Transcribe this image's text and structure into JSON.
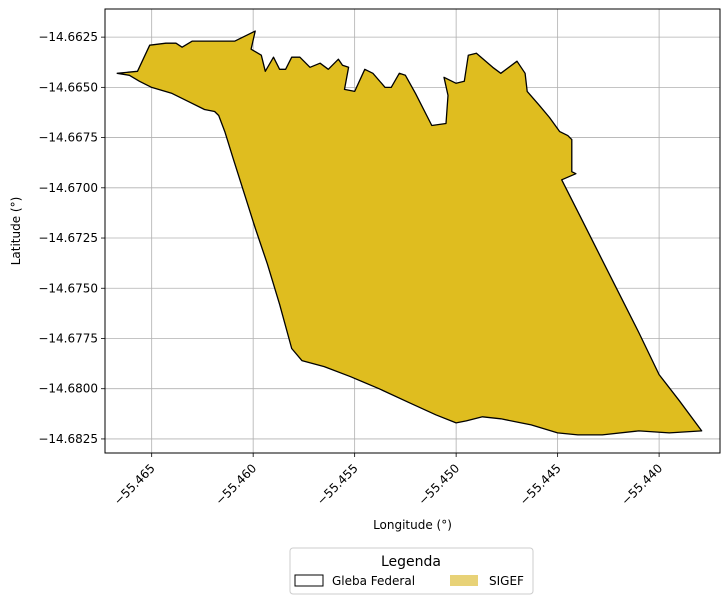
{
  "chart_data": {
    "type": "map",
    "xlabel": "Longitude (°)",
    "ylabel": "Latitude (°)",
    "xlim": [
      -55.4673,
      -55.437
    ],
    "ylim": [
      -14.6832,
      -14.6611
    ],
    "xticks": [
      -55.465,
      -55.46,
      -55.455,
      -55.45,
      -55.445,
      -55.44
    ],
    "xtick_labels": [
      "−55.465",
      "−55.460",
      "−55.455",
      "−55.450",
      "−55.445",
      "−55.440"
    ],
    "yticks": [
      -14.6625,
      -14.665,
      -14.6675,
      -14.67,
      -14.6725,
      -14.675,
      -14.6775,
      -14.68,
      -14.6825
    ],
    "ytick_labels": [
      "−14.6625",
      "−14.6650",
      "−14.6675",
      "−14.6700",
      "−14.6725",
      "−14.6750",
      "−14.6775",
      "−14.6800",
      "−14.6825"
    ],
    "grid": true,
    "legend": {
      "title": "Legenda",
      "placement": "bottom-center",
      "entries": [
        {
          "name": "Gleba Federal",
          "style": "outline",
          "edge_color": "#000000",
          "fill_color": "#ffffff"
        },
        {
          "name": "SIGEF",
          "style": "fill",
          "fill_color": "#e8d277"
        }
      ]
    },
    "series": [
      {
        "name": "Gleba Federal",
        "fill_color": "#dfbd1f",
        "edge_color": "#000000",
        "polygon": [
          [
            -55.4651,
            -14.6629
          ],
          [
            -55.4643,
            -14.6628
          ],
          [
            -55.4638,
            -14.6628
          ],
          [
            -55.4635,
            -14.663
          ],
          [
            -55.463,
            -14.6627
          ],
          [
            -55.4609,
            -14.6627
          ],
          [
            -55.4603,
            -14.6624
          ],
          [
            -55.4599,
            -14.6622
          ],
          [
            -55.4601,
            -14.6631
          ],
          [
            -55.4596,
            -14.6634
          ],
          [
            -55.4594,
            -14.6642
          ],
          [
            -55.459,
            -14.6635
          ],
          [
            -55.4587,
            -14.6641
          ],
          [
            -55.4584,
            -14.6641
          ],
          [
            -55.4581,
            -14.6635
          ],
          [
            -55.4577,
            -14.6635
          ],
          [
            -55.4572,
            -14.664
          ],
          [
            -55.4567,
            -14.6638
          ],
          [
            -55.4563,
            -14.6641
          ],
          [
            -55.4558,
            -14.6636
          ],
          [
            -55.4556,
            -14.6639
          ],
          [
            -55.4553,
            -14.664
          ],
          [
            -55.4555,
            -14.6651
          ],
          [
            -55.455,
            -14.6652
          ],
          [
            -55.4545,
            -14.6641
          ],
          [
            -55.4541,
            -14.6643
          ],
          [
            -55.4535,
            -14.665
          ],
          [
            -55.4532,
            -14.665
          ],
          [
            -55.4528,
            -14.6643
          ],
          [
            -55.4525,
            -14.6644
          ],
          [
            -55.452,
            -14.6653
          ],
          [
            -55.4512,
            -14.6669
          ],
          [
            -55.4505,
            -14.6668
          ],
          [
            -55.4504,
            -14.6654
          ],
          [
            -55.4506,
            -14.6645
          ],
          [
            -55.45,
            -14.6648
          ],
          [
            -55.4496,
            -14.6647
          ],
          [
            -55.4494,
            -14.6634
          ],
          [
            -55.449,
            -14.6633
          ],
          [
            -55.4482,
            -14.664
          ],
          [
            -55.4478,
            -14.6643
          ],
          [
            -55.447,
            -14.6637
          ],
          [
            -55.4466,
            -14.6643
          ],
          [
            -55.4465,
            -14.6652
          ],
          [
            -55.4459,
            -14.6659
          ],
          [
            -55.4454,
            -14.6665
          ],
          [
            -55.4449,
            -14.6672
          ],
          [
            -55.4445,
            -14.6674
          ],
          [
            -55.4443,
            -14.6676
          ],
          [
            -55.4443,
            -14.6685
          ],
          [
            -55.4443,
            -14.6692
          ],
          [
            -55.4441,
            -14.6693
          ],
          [
            -55.4448,
            -14.6696
          ],
          [
            -55.4439,
            -14.6714
          ],
          [
            -55.443,
            -14.6732
          ],
          [
            -55.442,
            -14.6752
          ],
          [
            -55.441,
            -14.6772
          ],
          [
            -55.44,
            -14.6793
          ],
          [
            -55.439,
            -14.6806
          ],
          [
            -55.4379,
            -14.6821
          ],
          [
            -55.4395,
            -14.6822
          ],
          [
            -55.441,
            -14.6821
          ],
          [
            -55.4428,
            -14.6823
          ],
          [
            -55.444,
            -14.6823
          ],
          [
            -55.445,
            -14.6822
          ],
          [
            -55.4463,
            -14.6818
          ],
          [
            -55.4468,
            -14.6817
          ],
          [
            -55.4478,
            -14.6815
          ],
          [
            -55.4487,
            -14.6814
          ],
          [
            -55.4495,
            -14.6816
          ],
          [
            -55.45,
            -14.6817
          ],
          [
            -55.451,
            -14.6813
          ],
          [
            -55.4523,
            -14.6807
          ],
          [
            -55.4538,
            -14.68
          ],
          [
            -55.4552,
            -14.6794
          ],
          [
            -55.4565,
            -14.6789
          ],
          [
            -55.4576,
            -14.6786
          ],
          [
            -55.4581,
            -14.678
          ],
          [
            -55.4587,
            -14.6758
          ],
          [
            -55.4593,
            -14.6738
          ],
          [
            -55.4599,
            -14.672
          ],
          [
            -55.4604,
            -14.6704
          ],
          [
            -55.461,
            -14.6685
          ],
          [
            -55.4614,
            -14.6672
          ],
          [
            -55.4617,
            -14.6664
          ],
          [
            -55.4619,
            -14.6662
          ],
          [
            -55.4624,
            -14.6661
          ],
          [
            -55.4632,
            -14.6657
          ],
          [
            -55.464,
            -14.6653
          ],
          [
            -55.465,
            -14.665
          ],
          [
            -55.4656,
            -14.6647
          ],
          [
            -55.4661,
            -14.6644
          ],
          [
            -55.4667,
            -14.6643
          ],
          [
            -55.4657,
            -14.6642
          ]
        ]
      }
    ]
  }
}
